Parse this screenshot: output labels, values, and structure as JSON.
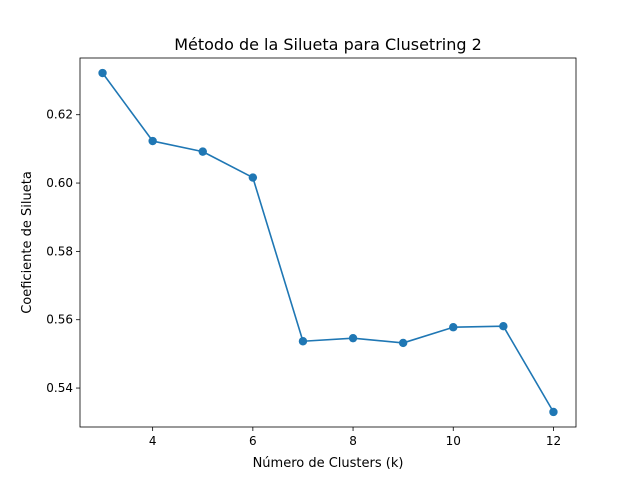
{
  "chart_data": {
    "type": "line",
    "title": "Método de la Silueta para Clusetring 2",
    "xlabel": "Número de Clusters (k)",
    "ylabel": "Coeficiente de Silueta",
    "x": [
      3,
      4,
      5,
      6,
      7,
      8,
      9,
      10,
      11,
      12
    ],
    "series": [
      {
        "values": [
          0.6322,
          0.6123,
          0.6092,
          0.6016,
          0.5537,
          0.5546,
          0.5532,
          0.5578,
          0.5581,
          0.533
        ],
        "color": "#1f77b4",
        "marker": "circle"
      }
    ],
    "xlim": [
      2.55,
      12.45
    ],
    "ylim": [
      0.5286,
      0.6366
    ],
    "xticks": [
      4,
      6,
      8,
      10,
      12
    ],
    "yticks": [
      0.54,
      0.56,
      0.58,
      0.6,
      0.62
    ],
    "xtick_labels": [
      "4",
      "6",
      "8",
      "10",
      "12"
    ],
    "ytick_labels": [
      "0.54",
      "0.56",
      "0.58",
      "0.60",
      "0.62"
    ],
    "grid": false,
    "legend": "none"
  }
}
